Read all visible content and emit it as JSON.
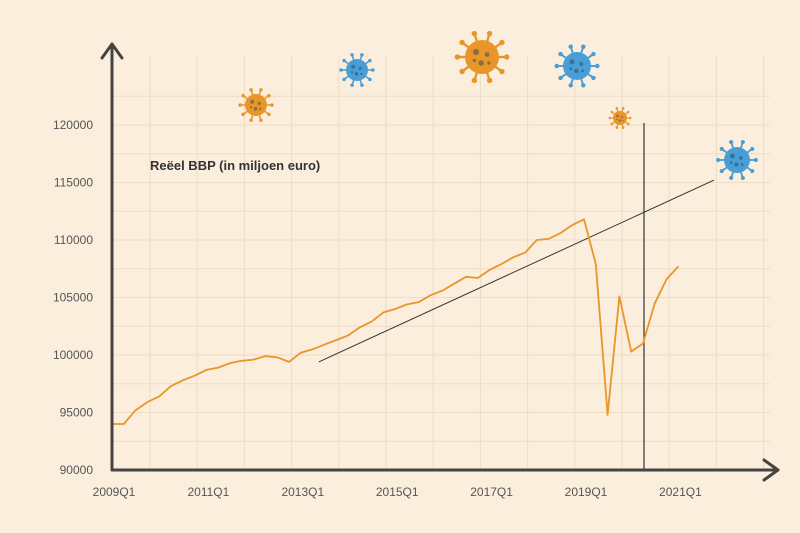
{
  "chart_data": {
    "type": "line",
    "title": "Reëel BBP (in miljoen euro)",
    "xlabel": "",
    "ylabel": "",
    "x_tick_labels": [
      "2009Q1",
      "2011Q1",
      "2013Q1",
      "2015Q1",
      "2017Q1",
      "2019Q1",
      "2021Q1"
    ],
    "y_ticks": [
      90000,
      95000,
      100000,
      105000,
      110000,
      115000,
      120000
    ],
    "ylim": [
      90000,
      124000
    ],
    "grid": true,
    "x": [
      "2009Q1",
      "2009Q2",
      "2009Q3",
      "2009Q4",
      "2010Q1",
      "2010Q2",
      "2010Q3",
      "2010Q4",
      "2011Q1",
      "2011Q2",
      "2011Q3",
      "2011Q4",
      "2012Q1",
      "2012Q2",
      "2012Q3",
      "2012Q4",
      "2013Q1",
      "2013Q2",
      "2013Q3",
      "2013Q4",
      "2014Q1",
      "2014Q2",
      "2014Q3",
      "2014Q4",
      "2015Q1",
      "2015Q2",
      "2015Q3",
      "2015Q4",
      "2016Q1",
      "2016Q2",
      "2016Q3",
      "2016Q4",
      "2017Q1",
      "2017Q2",
      "2017Q3",
      "2017Q4",
      "2018Q1",
      "2018Q2",
      "2018Q3",
      "2018Q4",
      "2019Q1",
      "2019Q2",
      "2019Q3",
      "2019Q4",
      "2020Q1",
      "2020Q2",
      "2020Q3",
      "2020Q4",
      "2021Q1",
      "2021Q2",
      "2021Q3",
      "2021Q4"
    ],
    "series": [
      {
        "name": "",
        "color": "#e8962a",
        "values": [
          94000,
          94000,
          95200,
          95900,
          96400,
          97300,
          97800,
          98200,
          98700,
          98900,
          99300,
          99500,
          99600,
          99900,
          99800,
          99400,
          100200,
          100500,
          100900,
          101300,
          101700,
          102400,
          102900,
          103700,
          104000,
          104400,
          104600,
          105200,
          105600,
          106200,
          106800,
          106700,
          107400,
          107900,
          108500,
          108900,
          110000,
          110100,
          110600,
          111300,
          111800,
          107900,
          94800,
          105100,
          100300,
          101000,
          104500,
          106600,
          107700,
          null,
          null,
          null
        ]
      }
    ],
    "trend_line": {
      "color": "#333333",
      "start": {
        "x": "2013Q1",
        "y": 99400
      },
      "end": {
        "x": "2021Q4",
        "y": 115200
      }
    },
    "event_marker": {
      "x": "2020Q2",
      "color": "#333333"
    },
    "virus_icons": [
      {
        "name": "virus-icon",
        "color": "#e8962a"
      },
      {
        "name": "virus-icon",
        "color": "#4a9ed6"
      },
      {
        "name": "virus-icon",
        "color": "#e8962a"
      },
      {
        "name": "virus-icon",
        "color": "#4a9ed6"
      },
      {
        "name": "virus-icon",
        "color": "#e8962a"
      },
      {
        "name": "virus-icon",
        "color": "#4a9ed6"
      }
    ],
    "colors": {
      "background": "#fbeedd",
      "grid": "#eedcc3",
      "axis": "#444444"
    }
  }
}
